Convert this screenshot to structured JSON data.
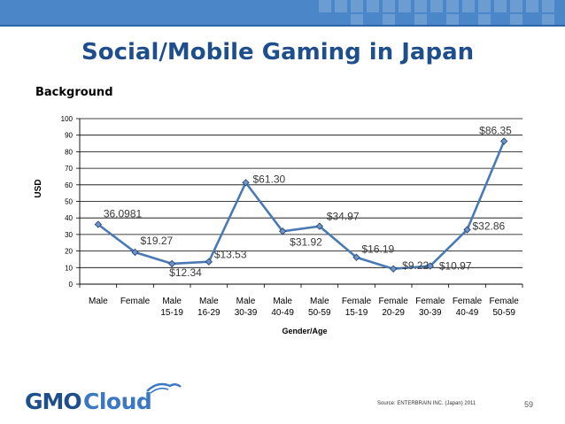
{
  "slide": {
    "title": "Social/Mobile Gaming in Japan",
    "subtitle": "Background",
    "source": "Source: ENTERBRAIN INC. (Japan) 2011",
    "page_number": "59",
    "logo_text": "GMO Cloud"
  },
  "colors": {
    "title": "#1f4e8c",
    "line": "#4a7ab4",
    "marker": "#6d95c9",
    "label": "#3a3a3a"
  },
  "chart_data": {
    "type": "line",
    "title": "",
    "xlabel": "Gender/Age",
    "ylabel": "USD",
    "ylim": [
      0,
      100
    ],
    "yticks": [
      0,
      10,
      20,
      30,
      40,
      50,
      60,
      70,
      80,
      90,
      100
    ],
    "grid": true,
    "categories": [
      {
        "line1": "Male",
        "line2": ""
      },
      {
        "line1": "Female",
        "line2": ""
      },
      {
        "line1": "Male",
        "line2": "15-19"
      },
      {
        "line1": "Male",
        "line2": "16-29"
      },
      {
        "line1": "Male",
        "line2": "30-39"
      },
      {
        "line1": "Male",
        "line2": "40-49"
      },
      {
        "line1": "Male",
        "line2": "50-59"
      },
      {
        "line1": "Female",
        "line2": "15-19"
      },
      {
        "line1": "Female",
        "line2": "20-29"
      },
      {
        "line1": "Female",
        "line2": "30-39"
      },
      {
        "line1": "Female",
        "line2": "40-49"
      },
      {
        "line1": "Female",
        "line2": "50-59"
      }
    ],
    "values": [
      36.0981,
      19.27,
      12.34,
      13.53,
      61.3,
      31.92,
      34.97,
      16.19,
      9.22,
      10.97,
      32.86,
      86.35
    ],
    "data_labels": [
      "36.0981",
      "$19.27",
      "$12.34",
      "$13.53",
      "$61.30",
      "$31.92",
      "$34.97",
      "$16.19",
      "$9.22",
      "$10.97",
      "$32.86",
      "$86.35"
    ]
  }
}
